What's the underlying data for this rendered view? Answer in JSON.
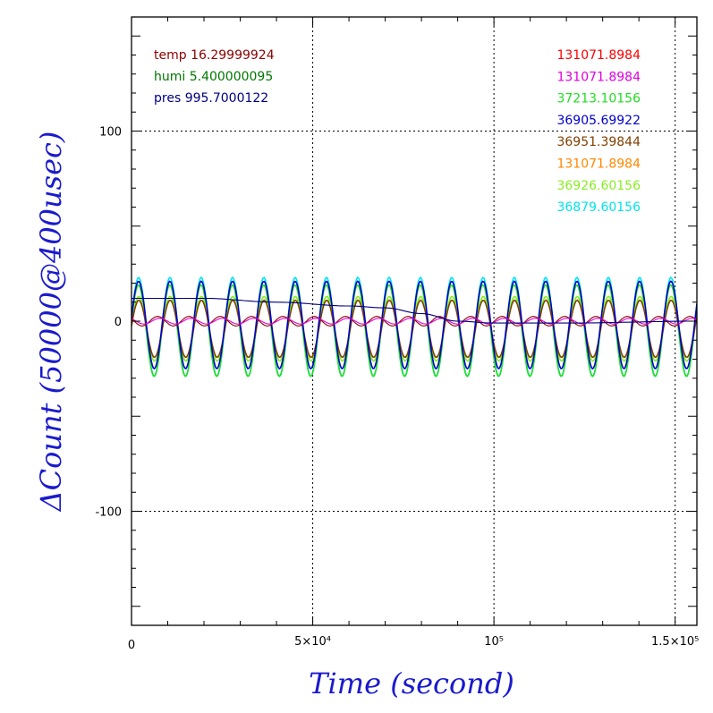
{
  "chart_data": {
    "type": "line",
    "xlabel": "Time (second)",
    "ylabel": "ΔCount (50000@400usec)",
    "xlim": [
      0,
      156000
    ],
    "ylim": [
      -160,
      160
    ],
    "x_ticks": [
      {
        "value": 0,
        "label": "0"
      },
      {
        "value": 50000,
        "label": "5×10⁴"
      },
      {
        "value": 100000,
        "label": "10⁵"
      },
      {
        "value": 150000,
        "label": "1.5×10⁵"
      }
    ],
    "y_ticks": [
      {
        "value": -100,
        "label": "-100"
      },
      {
        "value": 0,
        "label": "0"
      },
      {
        "value": 100,
        "label": "100"
      }
    ],
    "grid": true,
    "env_legend": [
      {
        "text": "temp 16.29999924",
        "color": "#8b0000"
      },
      {
        "text": "humi 5.400000095",
        "color": "#007700"
      },
      {
        "text": "pres 995.7000122",
        "color": "#00007f"
      }
    ],
    "channel_legend": [
      {
        "text": "131071.8984",
        "color": "#ff0000"
      },
      {
        "text": "131071.8984",
        "color": "#e000e0"
      },
      {
        "text": "37213.10156",
        "color": "#22dd22"
      },
      {
        "text": "36905.69922",
        "color": "#0000cc"
      },
      {
        "text": "36951.39844",
        "color": "#804000"
      },
      {
        "text": "131071.8984",
        "color": "#ff8800"
      },
      {
        "text": "36926.60156",
        "color": "#88ee22"
      },
      {
        "text": "36879.60156",
        "color": "#00e5ee"
      }
    ],
    "series": [
      {
        "color": "#00e5ee",
        "type": "sine",
        "mean": -3,
        "amplitude": 26,
        "period_s": 8640,
        "phase": 0.15,
        "x_end": 156000
      },
      {
        "color": "#22dd22",
        "type": "sine",
        "mean": -5,
        "amplitude": 24,
        "period_s": 8640,
        "phase": 0.18,
        "x_end": 156000
      },
      {
        "color": "#88ee22",
        "type": "sine",
        "mean": -4,
        "amplitude": 17,
        "period_s": 8640,
        "phase": 0.1,
        "x_end": 156000
      },
      {
        "color": "#804000",
        "type": "sine",
        "mean": -4,
        "amplitude": 15,
        "period_s": 8640,
        "phase": 0.1,
        "x_end": 156000
      },
      {
        "color": "#0000cc",
        "type": "sine",
        "mean": -2,
        "amplitude": 23,
        "period_s": 8640,
        "phase": 0.15,
        "x_end": 156000
      },
      {
        "color": "#8b0000",
        "type": "sine",
        "mean": 0,
        "amplitude": 2.5,
        "period_s": 8640,
        "phase": 2.6,
        "x_end": 156000
      },
      {
        "color": "#e000e0",
        "type": "sine",
        "mean": 0,
        "amplitude": 1.5,
        "period_s": 8640,
        "phase": 2.2,
        "x_end": 156000
      },
      {
        "color": "#00007f",
        "type": "points",
        "x": [
          0,
          20000,
          40000,
          60000,
          70000,
          80000,
          90000,
          100000,
          120000,
          156000
        ],
        "y": [
          12,
          12,
          10,
          8,
          7,
          4,
          0,
          -1,
          -1,
          0
        ]
      }
    ]
  }
}
